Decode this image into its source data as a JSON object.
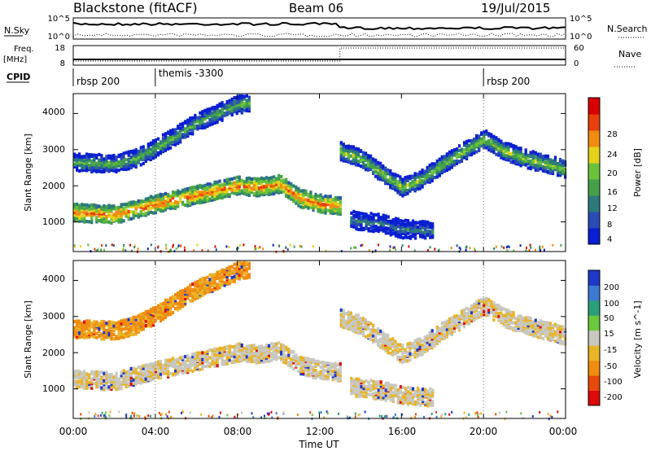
{
  "header": {
    "station": "Blackstone (fitACF)",
    "beam": "Beam 06",
    "date": "19/Jul/2015"
  },
  "sky_panel": {
    "left_label": "N.Sky",
    "right_label": "N.Search",
    "left_ticks": [
      "10^5",
      "10^0"
    ],
    "right_ticks": [
      "10^5",
      "10^0"
    ]
  },
  "freq_panel": {
    "left_label_1": "Freq.",
    "left_label_2": "[MHz]",
    "right_label": "Nave",
    "left_ticks": [
      "18",
      "8"
    ],
    "right_ticks": [
      "60",
      "0"
    ],
    "nave_step_time_h": 13.0,
    "nave_low": 0,
    "nave_high": 60
  },
  "cpid": {
    "label": "CPID",
    "segments": [
      {
        "label": "rbsp 200",
        "start_h": 0
      },
      {
        "label": "themis -3300",
        "start_h": 4
      },
      {
        "label": "rbsp 200",
        "start_h": 20
      }
    ]
  },
  "x_axis": {
    "label": "Time UT",
    "ticks": [
      "00:00",
      "04:00",
      "08:00",
      "12:00",
      "16:00",
      "20:00",
      "00:00"
    ],
    "range_h": [
      0,
      24
    ]
  },
  "power_panel": {
    "ylabel": "Slant Range [km]",
    "yticks": [
      "1000",
      "2000",
      "3000",
      "4000"
    ],
    "colorbar_label": "Power [dB]",
    "colorbar_ticks": [
      "4",
      "8",
      "12",
      "16",
      "20",
      "24",
      "28"
    ],
    "colors": [
      "#0a1ed2",
      "#2a4cb4",
      "#2c7a7a",
      "#44a14a",
      "#6cc23a",
      "#e6d21a",
      "#f08c10",
      "#e8400c",
      "#d80000"
    ]
  },
  "velocity_panel": {
    "ylabel": "Slant Range [km]",
    "yticks": [
      "1000",
      "2000",
      "3000",
      "4000"
    ],
    "colorbar_label": "Velocity [m s^-1]",
    "colorbar_ticks": [
      "200",
      "100",
      "50",
      "15",
      "-15",
      "-50",
      "-100",
      "-200"
    ],
    "colors": [
      "#2038c8",
      "#3c7ad2",
      "#2aa07a",
      "#6cc83c",
      "#c8c8c0",
      "#e8b428",
      "#f08c10",
      "#e84a0c",
      "#dc0a0a"
    ]
  },
  "chart_data": {
    "type": "heatmap",
    "xlabel": "Time UT",
    "ylabel": "Slant Range [km]",
    "xlim_h": [
      0,
      24
    ],
    "ylim_km": [
      180,
      4550
    ],
    "power_db_range": [
      0,
      30
    ],
    "velocity_range": [
      -200,
      200
    ],
    "scatter_bands": [
      {
        "name": "band-1",
        "t_start": 0.0,
        "t_end": 13.0,
        "range_km": [
          [
            0,
            1300
          ],
          [
            2,
            1250
          ],
          [
            4,
            1550
          ],
          [
            6,
            1800
          ],
          [
            8,
            2050
          ],
          [
            9,
            2000
          ],
          [
            10,
            2100
          ],
          [
            11,
            1700
          ],
          [
            12,
            1550
          ],
          [
            13,
            1500
          ]
        ],
        "power_db": 24,
        "velocity": 0
      },
      {
        "name": "band-2",
        "t_start": 0.0,
        "t_end": 8.6,
        "range_km": [
          [
            0,
            2700
          ],
          [
            2,
            2650
          ],
          [
            3,
            2800
          ],
          [
            4,
            3100
          ],
          [
            6,
            3800
          ],
          [
            8,
            4300
          ],
          [
            8.6,
            4350
          ]
        ],
        "power_db": 14,
        "velocity": -40
      },
      {
        "name": "band-3",
        "t_start": 13.0,
        "t_end": 24.0,
        "range_km": [
          [
            13,
            3000
          ],
          [
            14,
            2800
          ],
          [
            15,
            2400
          ],
          [
            16,
            2000
          ],
          [
            17,
            2250
          ],
          [
            18,
            2650
          ],
          [
            19,
            3000
          ],
          [
            20,
            3350
          ],
          [
            21,
            3000
          ],
          [
            22,
            2800
          ],
          [
            24,
            2500
          ]
        ],
        "power_db": 16,
        "velocity": 0
      },
      {
        "name": "band-4",
        "t_start": 13.5,
        "t_end": 17.5,
        "range_km": [
          [
            13.5,
            1100
          ],
          [
            15,
            1000
          ],
          [
            16,
            850
          ],
          [
            17.5,
            800
          ]
        ],
        "power_db": 10,
        "velocity": 0
      }
    ]
  }
}
